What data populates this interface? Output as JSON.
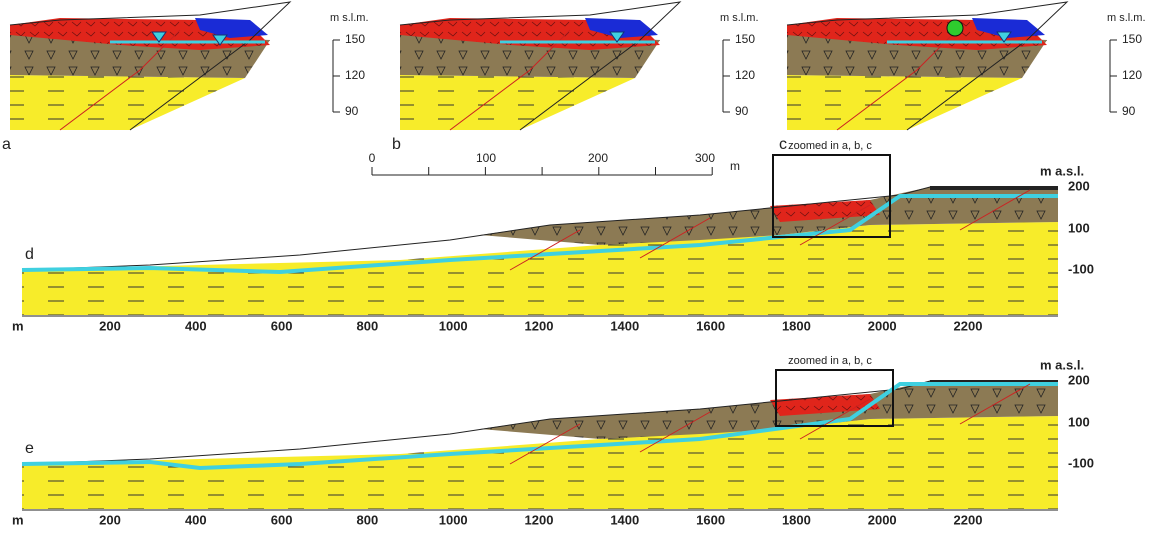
{
  "panels_small": [
    {
      "label": "a",
      "axis_title": "m s.l.m.",
      "ticks": [
        "150",
        "120",
        "90"
      ]
    },
    {
      "label": "b",
      "axis_title": "m s.l.m.",
      "ticks": [
        "150",
        "120",
        "90"
      ]
    },
    {
      "label": "c",
      "axis_title": "m s.l.m.",
      "ticks": [
        "150",
        "120",
        "90"
      ]
    }
  ],
  "scale_bar": {
    "ticks": [
      "0",
      "100",
      "200",
      "300"
    ],
    "unit": "m"
  },
  "sections": [
    {
      "label": "d",
      "box_label": "zoomed in a, b, c",
      "y_axis_title": "m a.s.l.",
      "y_ticks": [
        "200",
        "100",
        "-100"
      ],
      "x_axis_title": "m",
      "x_ticks": [
        "200",
        "400",
        "600",
        "800",
        "1000",
        "1200",
        "1400",
        "1600",
        "1800",
        "2000",
        "2200"
      ]
    },
    {
      "label": "e",
      "box_label": "zoomed in a, b, c",
      "y_axis_title": "m a.s.l.",
      "y_ticks": [
        "200",
        "100",
        "-100"
      ],
      "x_axis_title": "m",
      "x_ticks": [
        "200",
        "400",
        "600",
        "800",
        "1000",
        "1200",
        "1400",
        "1600",
        "1800",
        "2000",
        "2200"
      ]
    }
  ]
}
